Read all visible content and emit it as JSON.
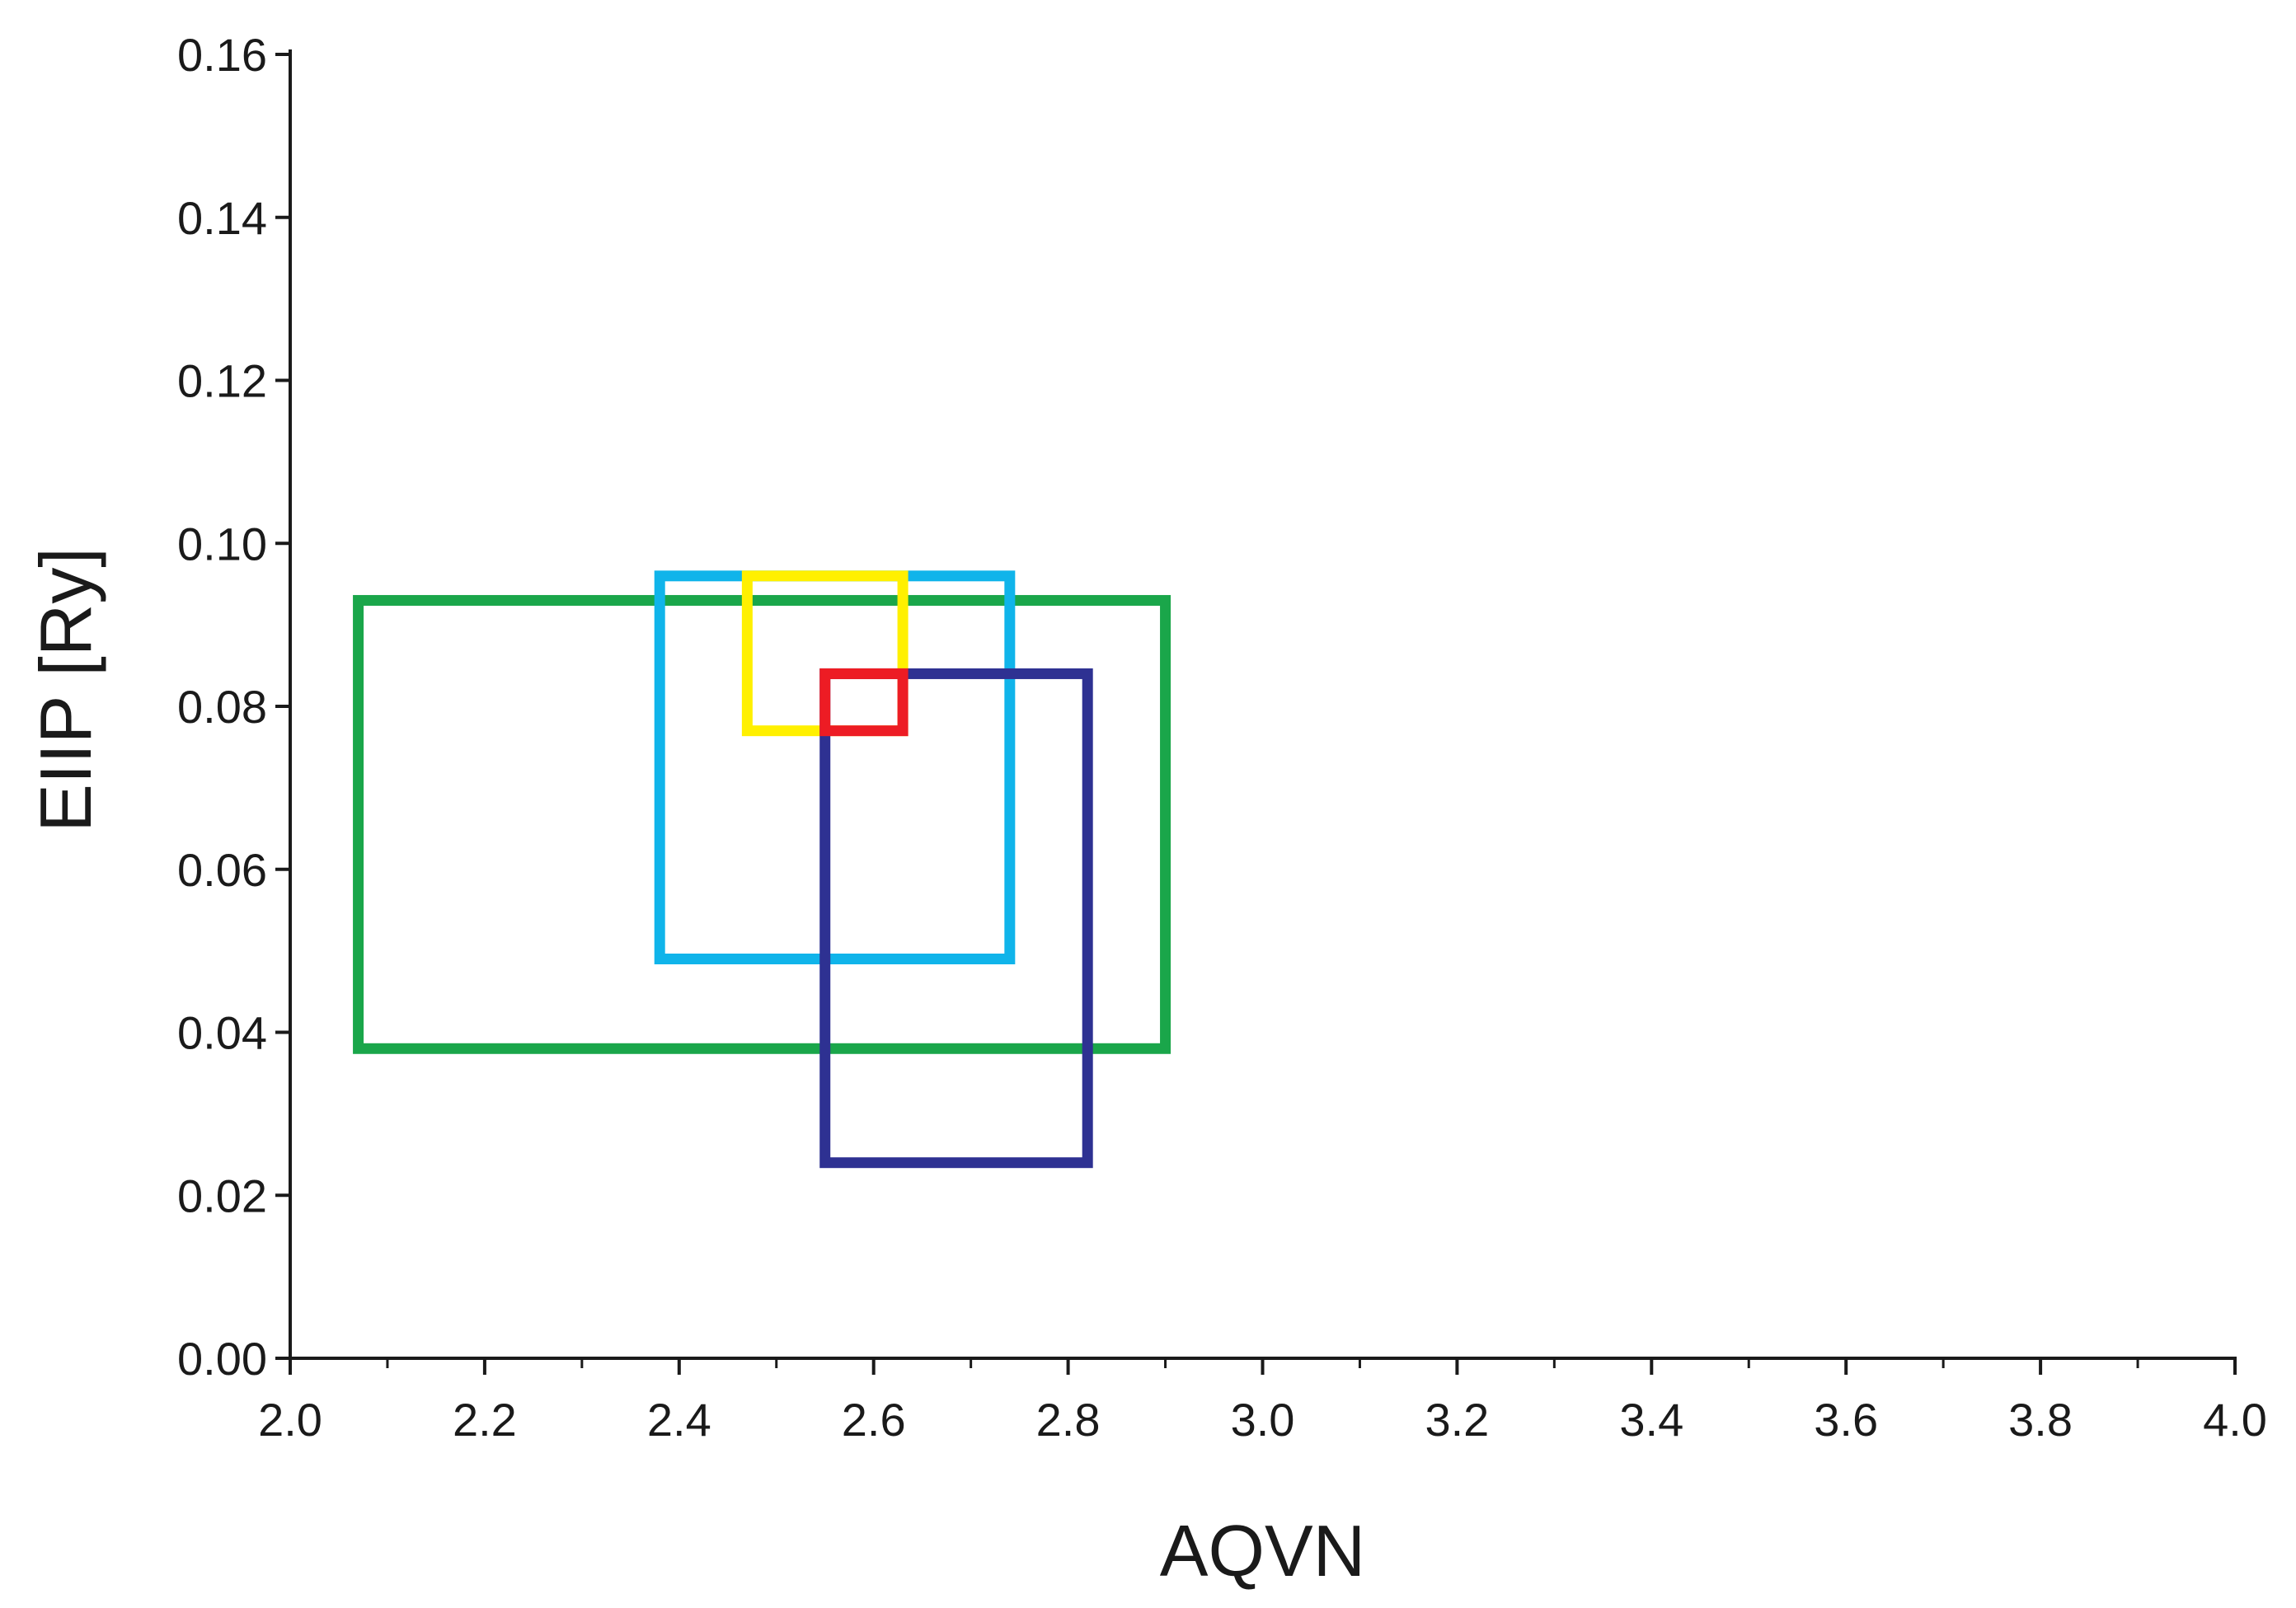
{
  "chart_data": {
    "type": "rectangle-regions",
    "title": "",
    "xlabel": "AQVN",
    "ylabel": "EIIP [Ry]",
    "xlim": [
      2.0,
      4.0
    ],
    "ylim": [
      0.0,
      0.16
    ],
    "x_ticks": [
      "2.0",
      "2.2",
      "2.4",
      "2.6",
      "2.8",
      "3.0",
      "3.2",
      "3.4",
      "3.6",
      "3.8",
      "4.0"
    ],
    "x_tick_values": [
      2.0,
      2.2,
      2.4,
      2.6,
      2.8,
      3.0,
      3.2,
      3.4,
      3.6,
      3.8,
      4.0
    ],
    "x_minor_step": 0.1,
    "y_ticks": [
      "0.00",
      "0.02",
      "0.04",
      "0.06",
      "0.08",
      "0.10",
      "0.12",
      "0.14",
      "0.16"
    ],
    "y_tick_values": [
      0.0,
      0.02,
      0.04,
      0.06,
      0.08,
      0.1,
      0.12,
      0.14,
      0.16
    ],
    "grid": false,
    "regions": [
      {
        "name": "green",
        "color": "#1aa64a",
        "x": [
          2.07,
          2.9
        ],
        "y": [
          0.038,
          0.093
        ]
      },
      {
        "name": "light-blue",
        "color": "#10b4ea",
        "x": [
          2.38,
          2.74
        ],
        "y": [
          0.049,
          0.096
        ]
      },
      {
        "name": "yellow",
        "color": "#fff000",
        "x": [
          2.47,
          2.63
        ],
        "y": [
          0.077,
          0.096
        ]
      },
      {
        "name": "navy",
        "color": "#2e3192",
        "x": [
          2.55,
          2.82
        ],
        "y": [
          0.024,
          0.084
        ]
      },
      {
        "name": "red",
        "color": "#ed1c24",
        "x": [
          2.55,
          2.63
        ],
        "y": [
          0.077,
          0.084
        ]
      }
    ]
  }
}
